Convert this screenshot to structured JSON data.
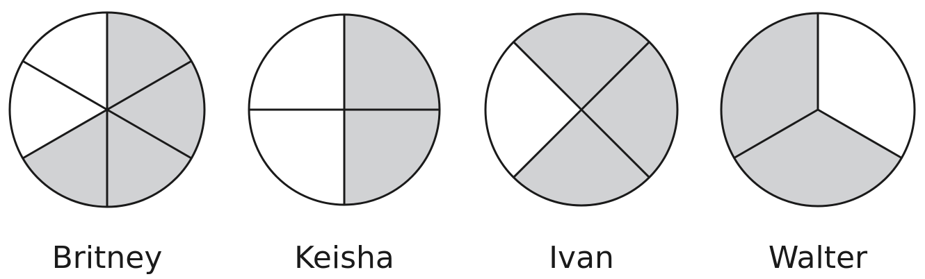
{
  "figure": {
    "colors": {
      "shaded": "#d1d2d4",
      "unshaded": "#ffffff",
      "outline": "#1a1a1a"
    },
    "pies": [
      {
        "id": "britney",
        "label": "Britney",
        "parts": 6,
        "shaded_parts": 4,
        "shaded_fraction": 0.6667,
        "sections": [
          "shaded",
          "shaded",
          "shaded",
          "shaded",
          "unshaded",
          "unshaded"
        ]
      },
      {
        "id": "keisha",
        "label": "Keisha",
        "parts": 4,
        "shaded_parts": 2,
        "shaded_fraction": 0.5,
        "sections": [
          "shaded",
          "shaded",
          "unshaded",
          "unshaded"
        ]
      },
      {
        "id": "ivan",
        "label": "Ivan",
        "parts": 4,
        "shaded_parts": 3,
        "shaded_fraction": 0.75,
        "sections": [
          "shaded",
          "shaded",
          "unshaded",
          "shaded"
        ]
      },
      {
        "id": "walter",
        "label": "Walter",
        "parts": 3,
        "shaded_parts": 2,
        "shaded_fraction": 0.6667,
        "sections": [
          "unshaded",
          "shaded",
          "shaded"
        ]
      }
    ]
  }
}
